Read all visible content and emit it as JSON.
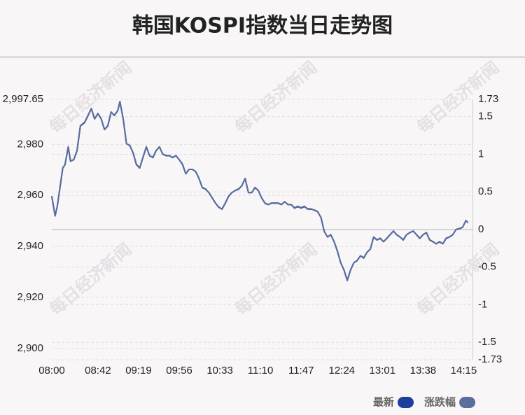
{
  "chart_data": {
    "type": "line",
    "title": "韩国KOSPI指数当日走势图",
    "watermark": "每日经济新闻",
    "x": [
      "08:00",
      "08:03",
      "08:05",
      "08:10",
      "08:12",
      "08:15",
      "08:17",
      "08:20",
      "08:23",
      "08:26",
      "08:30",
      "08:33",
      "08:36",
      "08:39",
      "08:42",
      "08:45",
      "08:48",
      "08:51",
      "08:54",
      "08:57",
      "09:00",
      "09:02",
      "09:05",
      "09:08",
      "09:11",
      "09:14",
      "09:17",
      "09:20",
      "09:23",
      "09:26",
      "09:29",
      "09:32",
      "09:35",
      "09:38",
      "09:41",
      "09:44",
      "09:47",
      "09:50",
      "09:53",
      "09:56",
      "09:59",
      "10:02",
      "10:05",
      "10:08",
      "10:11",
      "10:14",
      "10:17",
      "10:20",
      "10:23",
      "10:26",
      "10:29",
      "10:32",
      "10:35",
      "10:38",
      "10:41",
      "10:44",
      "10:47",
      "10:50",
      "10:53",
      "10:56",
      "10:59",
      "11:02",
      "11:05",
      "11:08",
      "11:11",
      "11:14",
      "11:17",
      "11:20",
      "11:23",
      "11:26",
      "11:29",
      "11:32",
      "11:35",
      "11:38",
      "11:41",
      "11:44",
      "11:47",
      "11:50",
      "11:53",
      "11:56",
      "11:59",
      "12:02",
      "12:05",
      "12:08",
      "12:11",
      "12:14",
      "12:17",
      "12:20",
      "12:23",
      "12:26",
      "12:29",
      "12:32",
      "12:35",
      "12:38",
      "12:41",
      "12:44",
      "12:47",
      "12:50",
      "12:53",
      "12:56",
      "12:59",
      "13:02",
      "13:05",
      "13:08",
      "13:11",
      "13:14",
      "13:17",
      "13:20",
      "13:23",
      "13:26",
      "13:29",
      "13:32",
      "13:35",
      "13:38",
      "13:41",
      "13:44",
      "13:47",
      "13:50",
      "13:53",
      "13:56",
      "13:59",
      "14:02",
      "14:05",
      "14:08",
      "14:11",
      "14:14",
      "14:17",
      "14:19"
    ],
    "series": [
      {
        "name": "最新",
        "color": "#1c3f9e",
        "values": [
          2959.7,
          2952,
          2955.6,
          2970.7,
          2972,
          2979,
          2973.4,
          2974,
          2977.6,
          2987.2,
          2988.6,
          2991.3,
          2994,
          2990,
          2992.1,
          2990,
          2985.8,
          2987.2,
          2992.7,
          2991.3,
          2993.2,
          2996.8,
          2990,
          2980.3,
          2979.5,
          2976.7,
          2972.1,
          2970.7,
          2974.8,
          2979,
          2975.6,
          2974.8,
          2977.6,
          2979,
          2976.2,
          2975.6,
          2975.6,
          2974.8,
          2975.6,
          2974,
          2972.1,
          2968.5,
          2970.2,
          2970.2,
          2969.3,
          2966.6,
          2963,
          2962.4,
          2961.1,
          2959.1,
          2957,
          2955.3,
          2954.7,
          2957,
          2959.7,
          2961.1,
          2961.9,
          2962.4,
          2963.8,
          2966.6,
          2961.1,
          2961.1,
          2963,
          2961.9,
          2959.1,
          2957,
          2956.4,
          2957,
          2957,
          2957,
          2956.4,
          2957.5,
          2956.4,
          2956.4,
          2955,
          2955.6,
          2955,
          2955.6,
          2954.7,
          2954.7,
          2954.2,
          2953.6,
          2951.4,
          2945.9,
          2943.7,
          2944.6,
          2941.8,
          2938.2,
          2933.6,
          2930.8,
          2926.7,
          2930.8,
          2933.6,
          2934.4,
          2936.3,
          2935.5,
          2937.7,
          2939,
          2943.7,
          2942.6,
          2943.2,
          2941.8,
          2943.2,
          2944.6,
          2946,
          2944.6,
          2943.7,
          2942.6,
          2944.6,
          2945.4,
          2946,
          2944.6,
          2943.2,
          2944.6,
          2945.4,
          2942.6,
          2941.8,
          2941,
          2941.8,
          2941,
          2943.2,
          2943.7,
          2944.6,
          2946.6,
          2947,
          2947.5,
          2950.1,
          2949.3
        ]
      },
      {
        "name": "涨跌幅",
        "color": "#5a6e9c",
        "axis": "y2",
        "values": [
          0.44,
          0.18,
          0.31,
          0.82,
          0.86,
          1.1,
          0.91,
          0.93,
          1.05,
          1.38,
          1.43,
          1.52,
          1.61,
          1.47,
          1.54,
          1.47,
          1.33,
          1.38,
          1.56,
          1.52,
          1.58,
          1.7,
          1.47,
          1.14,
          1.12,
          1.02,
          0.87,
          0.82,
          0.96,
          1.1,
          0.98,
          0.96,
          1.05,
          1.1,
          1.0,
          0.98,
          0.98,
          0.96,
          0.98,
          0.93,
          0.87,
          0.74,
          0.8,
          0.8,
          0.77,
          0.68,
          0.56,
          0.54,
          0.49,
          0.42,
          0.35,
          0.3,
          0.27,
          0.35,
          0.44,
          0.49,
          0.52,
          0.54,
          0.58,
          0.68,
          0.49,
          0.49,
          0.56,
          0.52,
          0.42,
          0.35,
          0.33,
          0.35,
          0.35,
          0.35,
          0.33,
          0.37,
          0.33,
          0.33,
          0.29,
          0.31,
          0.29,
          0.31,
          0.27,
          0.27,
          0.26,
          0.24,
          0.16,
          -0.02,
          -0.1,
          -0.07,
          -0.16,
          -0.29,
          -0.44,
          -0.54,
          -0.68,
          -0.54,
          -0.44,
          -0.41,
          -0.35,
          -0.38,
          -0.3,
          -0.26,
          -0.1,
          -0.14,
          -0.12,
          -0.16,
          -0.12,
          -0.07,
          -0.02,
          -0.07,
          -0.1,
          -0.14,
          -0.07,
          -0.04,
          -0.02,
          -0.07,
          -0.12,
          -0.07,
          -0.04,
          -0.14,
          -0.16,
          -0.19,
          -0.16,
          -0.19,
          -0.12,
          -0.1,
          -0.07,
          0,
          0.01,
          0.03,
          0.12,
          0.09
        ]
      }
    ],
    "xlim": [
      "08:00",
      "14:23"
    ],
    "xticks": [
      "08:00",
      "08:42",
      "09:19",
      "09:56",
      "10:33",
      "11:10",
      "11:47",
      "12:24",
      "13:01",
      "13:38",
      "14:15"
    ],
    "ylim": [
      2895.55,
      2997.65
    ],
    "yticks": [
      {
        "value": 2997.65,
        "label": "2,997.65"
      },
      {
        "value": 2980,
        "label": "2,980"
      },
      {
        "value": 2960,
        "label": "2,960"
      },
      {
        "value": 2940,
        "label": "2,940"
      },
      {
        "value": 2920,
        "label": "2,920"
      },
      {
        "value": 2900,
        "label": "2,900"
      }
    ],
    "y2lim": [
      -1.73,
      1.73
    ],
    "y2ticks": [
      1.73,
      1.5,
      1,
      0.5,
      0,
      -0.5,
      -1,
      -1.5,
      -1.73
    ],
    "grid": true,
    "legend": "bottom-right"
  }
}
